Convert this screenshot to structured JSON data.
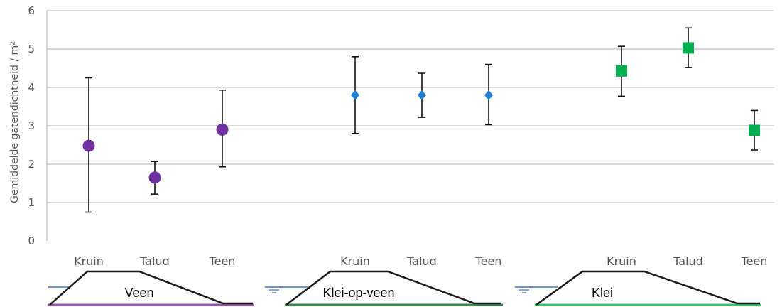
{
  "chart_data": {
    "type": "scatter",
    "ylabel": "Gemiddelde gatendichtheid / m²",
    "ylim": [
      0,
      6
    ],
    "yticks": [
      "0",
      "1",
      "2",
      "3",
      "4",
      "5",
      "6"
    ],
    "grid": true,
    "groups": [
      {
        "label": "Veen",
        "color": "#7030a0",
        "marker": "circle",
        "categories": [
          "Kruin",
          "Talud",
          "Teen"
        ],
        "values": [
          2.48,
          1.65,
          2.9
        ],
        "err_low": [
          0.75,
          1.22,
          1.93
        ],
        "err_high": [
          4.25,
          2.07,
          3.93
        ]
      },
      {
        "label": "Klei-op-veen",
        "color": "#1f7fd0",
        "marker": "diamond",
        "categories": [
          "Kruin",
          "Talud",
          "Teen"
        ],
        "values": [
          3.8,
          3.8,
          3.8
        ],
        "err_low": [
          2.8,
          3.22,
          3.03
        ],
        "err_high": [
          4.8,
          4.37,
          4.6
        ]
      },
      {
        "label": "Klei",
        "color": "#00b050",
        "marker": "square",
        "categories": [
          "Kruin",
          "Talud",
          "Teen"
        ],
        "values": [
          4.43,
          5.03,
          2.88
        ],
        "err_low": [
          3.77,
          4.52,
          2.37
        ],
        "err_high": [
          5.07,
          5.55,
          3.4
        ]
      }
    ]
  },
  "dike_colors": {
    "outline": "#1a1a1a",
    "water": "#4472c4",
    "base": [
      "#a050b0",
      "#2e8b4e",
      "#3cc070"
    ]
  }
}
